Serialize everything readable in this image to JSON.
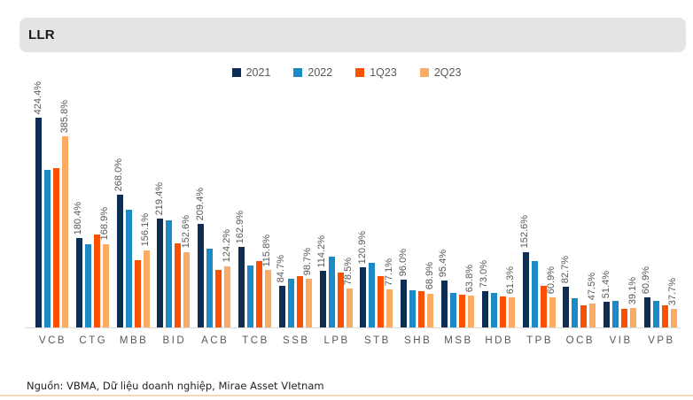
{
  "header": {
    "title": "LLR"
  },
  "colors": {
    "navy_2021": "#0d2d52",
    "blue_2022": "#1b8ac6",
    "orange_1q23": "#fb5002",
    "light_orange_2q23": "#fcab64",
    "axis_line": "#d9d9d9",
    "label_gray": "#595959",
    "header_bg": "#e4e4e4",
    "footer_divider": "#f4d7ba"
  },
  "chart_data": {
    "type": "bar",
    "title": "LLR",
    "unit": "%",
    "legend_position": "top-center",
    "y_axis_visible": false,
    "ylim": [
      0,
      450
    ],
    "categories": [
      "VCB",
      "CTG",
      "MBB",
      "BID",
      "ACB",
      "TCB",
      "SSB",
      "LPB",
      "STB",
      "SHB",
      "MSB",
      "HDB",
      "TPB",
      "OCB",
      "VIB",
      "VPB"
    ],
    "series": [
      {
        "name": "2021",
        "color": "#0d2d52",
        "data_labels_shown": true,
        "values": [
          424.4,
          180.4,
          268.0,
          219.4,
          209.4,
          162.9,
          84.7,
          114.2,
          120.9,
          96.0,
          95.4,
          73.0,
          152.6,
          82.7,
          51.4,
          60.9
        ]
      },
      {
        "name": "2022",
        "color": "#1b8ac6",
        "data_labels_shown": false,
        "values": [
          318,
          168,
          238,
          217,
          159,
          126,
          99,
          143,
          131,
          75,
          69,
          70,
          135,
          59,
          54,
          53
        ]
      },
      {
        "name": "1Q23",
        "color": "#fb5002",
        "data_labels_shown": false,
        "values": [
          322,
          188,
          136,
          170,
          116,
          134,
          104,
          111,
          103,
          73,
          66,
          62,
          85,
          45,
          37,
          45
        ]
      },
      {
        "name": "2Q23",
        "color": "#fcab64",
        "data_labels_shown": true,
        "values": [
          385.8,
          168.9,
          156.1,
          152.6,
          124.2,
          115.8,
          98.7,
          78.5,
          77.1,
          68.9,
          63.8,
          61.3,
          60.9,
          47.5,
          39.1,
          37.7
        ]
      }
    ],
    "value_label_format": "{value}%"
  },
  "footer": {
    "source": "Nguồn: VBMA, Dữ liệu doanh nghiệp, Mirae Asset VIetnam"
  }
}
